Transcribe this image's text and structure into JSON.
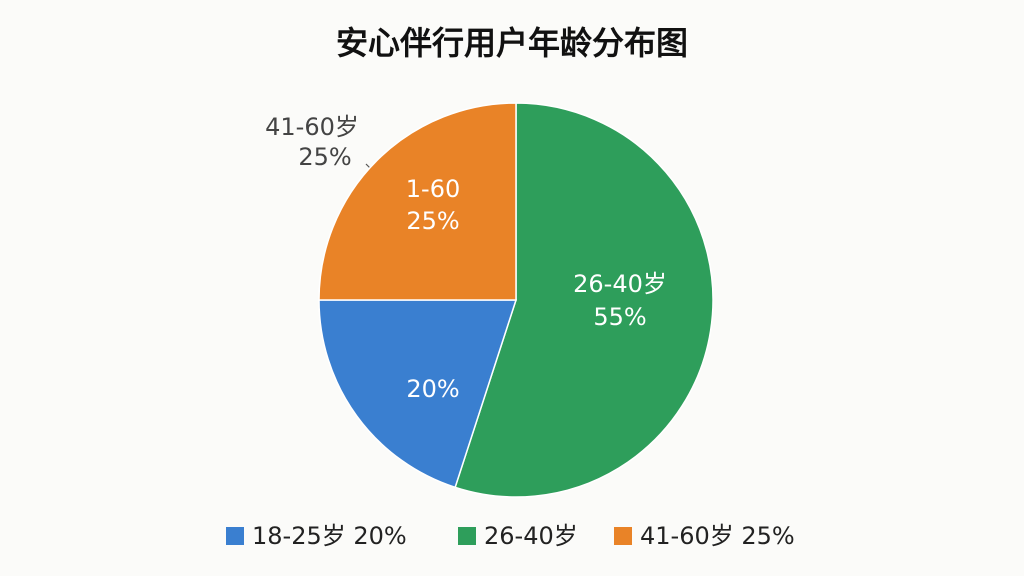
{
  "chart_data": {
    "type": "pie",
    "title": "安心伴行用户年龄分布图",
    "categories": [
      "26-40岁",
      "18-25岁",
      "41-60岁"
    ],
    "values": [
      55,
      20,
      25
    ],
    "value_labels": [
      "55%",
      "20%",
      "25%"
    ],
    "colors": [
      "#2e9e5b",
      "#3a7fd0",
      "#e98327"
    ],
    "annotations": [
      "1-60"
    ],
    "legend": [
      {
        "label": "18-25岁 20%",
        "color": "#3a7fd0"
      },
      {
        "label": "26-40岁",
        "color": "#2e9e5b"
      },
      {
        "label": "41-60岁 25%",
        "color": "#e98327"
      }
    ]
  }
}
